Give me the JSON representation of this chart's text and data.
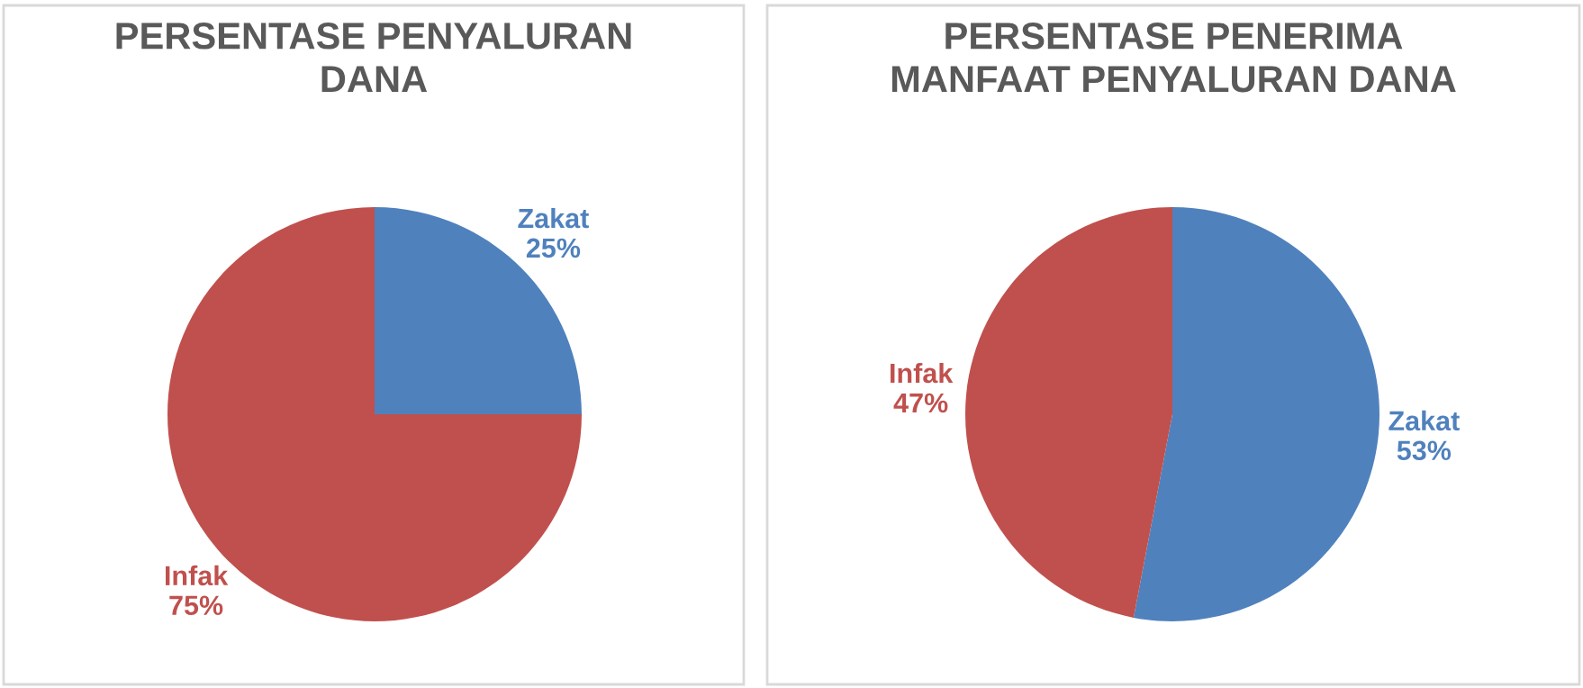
{
  "chart_data": [
    {
      "type": "pie",
      "title": "PERSENTASE PENYALURAN\nDANA",
      "categories": [
        "Zakat",
        "Infak"
      ],
      "values": [
        25,
        75
      ],
      "colors": [
        "#4f81bd",
        "#c0504d"
      ],
      "value_labels": [
        "25%",
        "75%"
      ]
    },
    {
      "type": "pie",
      "title": "PERSENTASE PENERIMA\nMANFAAT PENYALURAN DANA",
      "categories": [
        "Zakat",
        "Infak"
      ],
      "values": [
        53,
        47
      ],
      "colors": [
        "#4f81bd",
        "#c0504d"
      ],
      "value_labels": [
        "53%",
        "47%"
      ]
    }
  ]
}
